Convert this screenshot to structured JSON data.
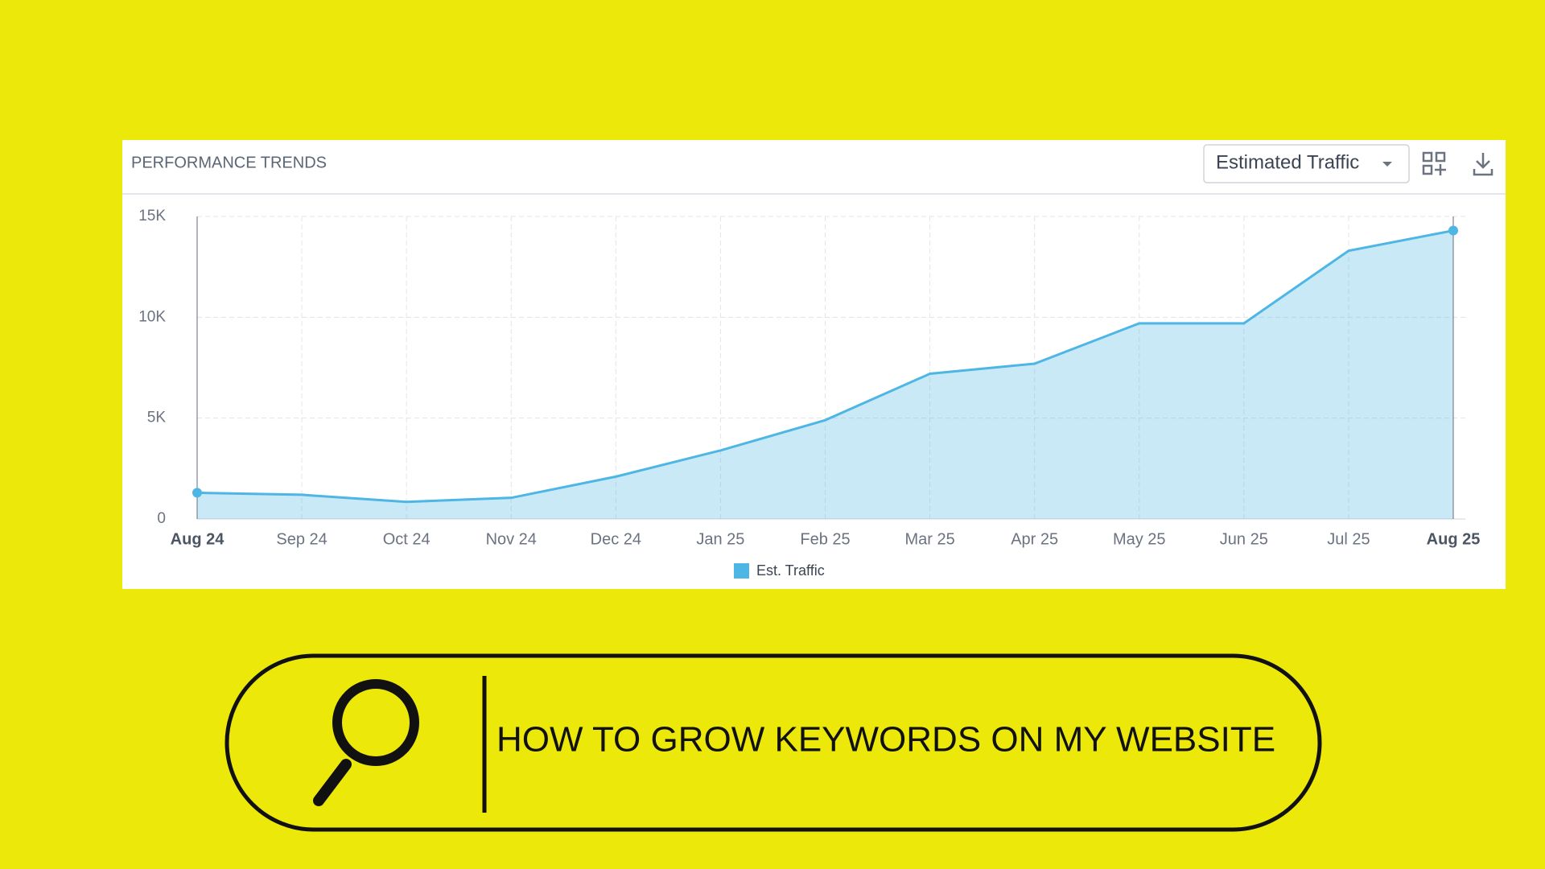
{
  "chart_data": {
    "type": "area",
    "title": "PERFORMANCE TRENDS",
    "categories": [
      "Aug 24",
      "Sep 24",
      "Oct 24",
      "Nov 24",
      "Dec 24",
      "Jan 25",
      "Feb 25",
      "Mar 25",
      "Apr 25",
      "May 25",
      "Jun 25",
      "Jul 25",
      "Aug 25"
    ],
    "series": [
      {
        "name": "Est. Traffic",
        "color": "#4db6e4",
        "values": [
          1300,
          1200,
          850,
          1050,
          2100,
          3400,
          4900,
          7200,
          7700,
          9700,
          9700,
          13300,
          14300
        ]
      }
    ],
    "ylim": [
      0,
      15000
    ],
    "yticks": [
      0,
      {
        "value": 5000,
        "label": "5K"
      },
      {
        "value": 10000,
        "label": "10K"
      },
      {
        "value": 15000,
        "label": "15K"
      }
    ],
    "grid": true,
    "legend": "bottom"
  },
  "controls": {
    "metric": "Estimated Traffic"
  },
  "search": {
    "query": "HOW TO GROW KEYWORDS ON MY WEBSITE"
  }
}
